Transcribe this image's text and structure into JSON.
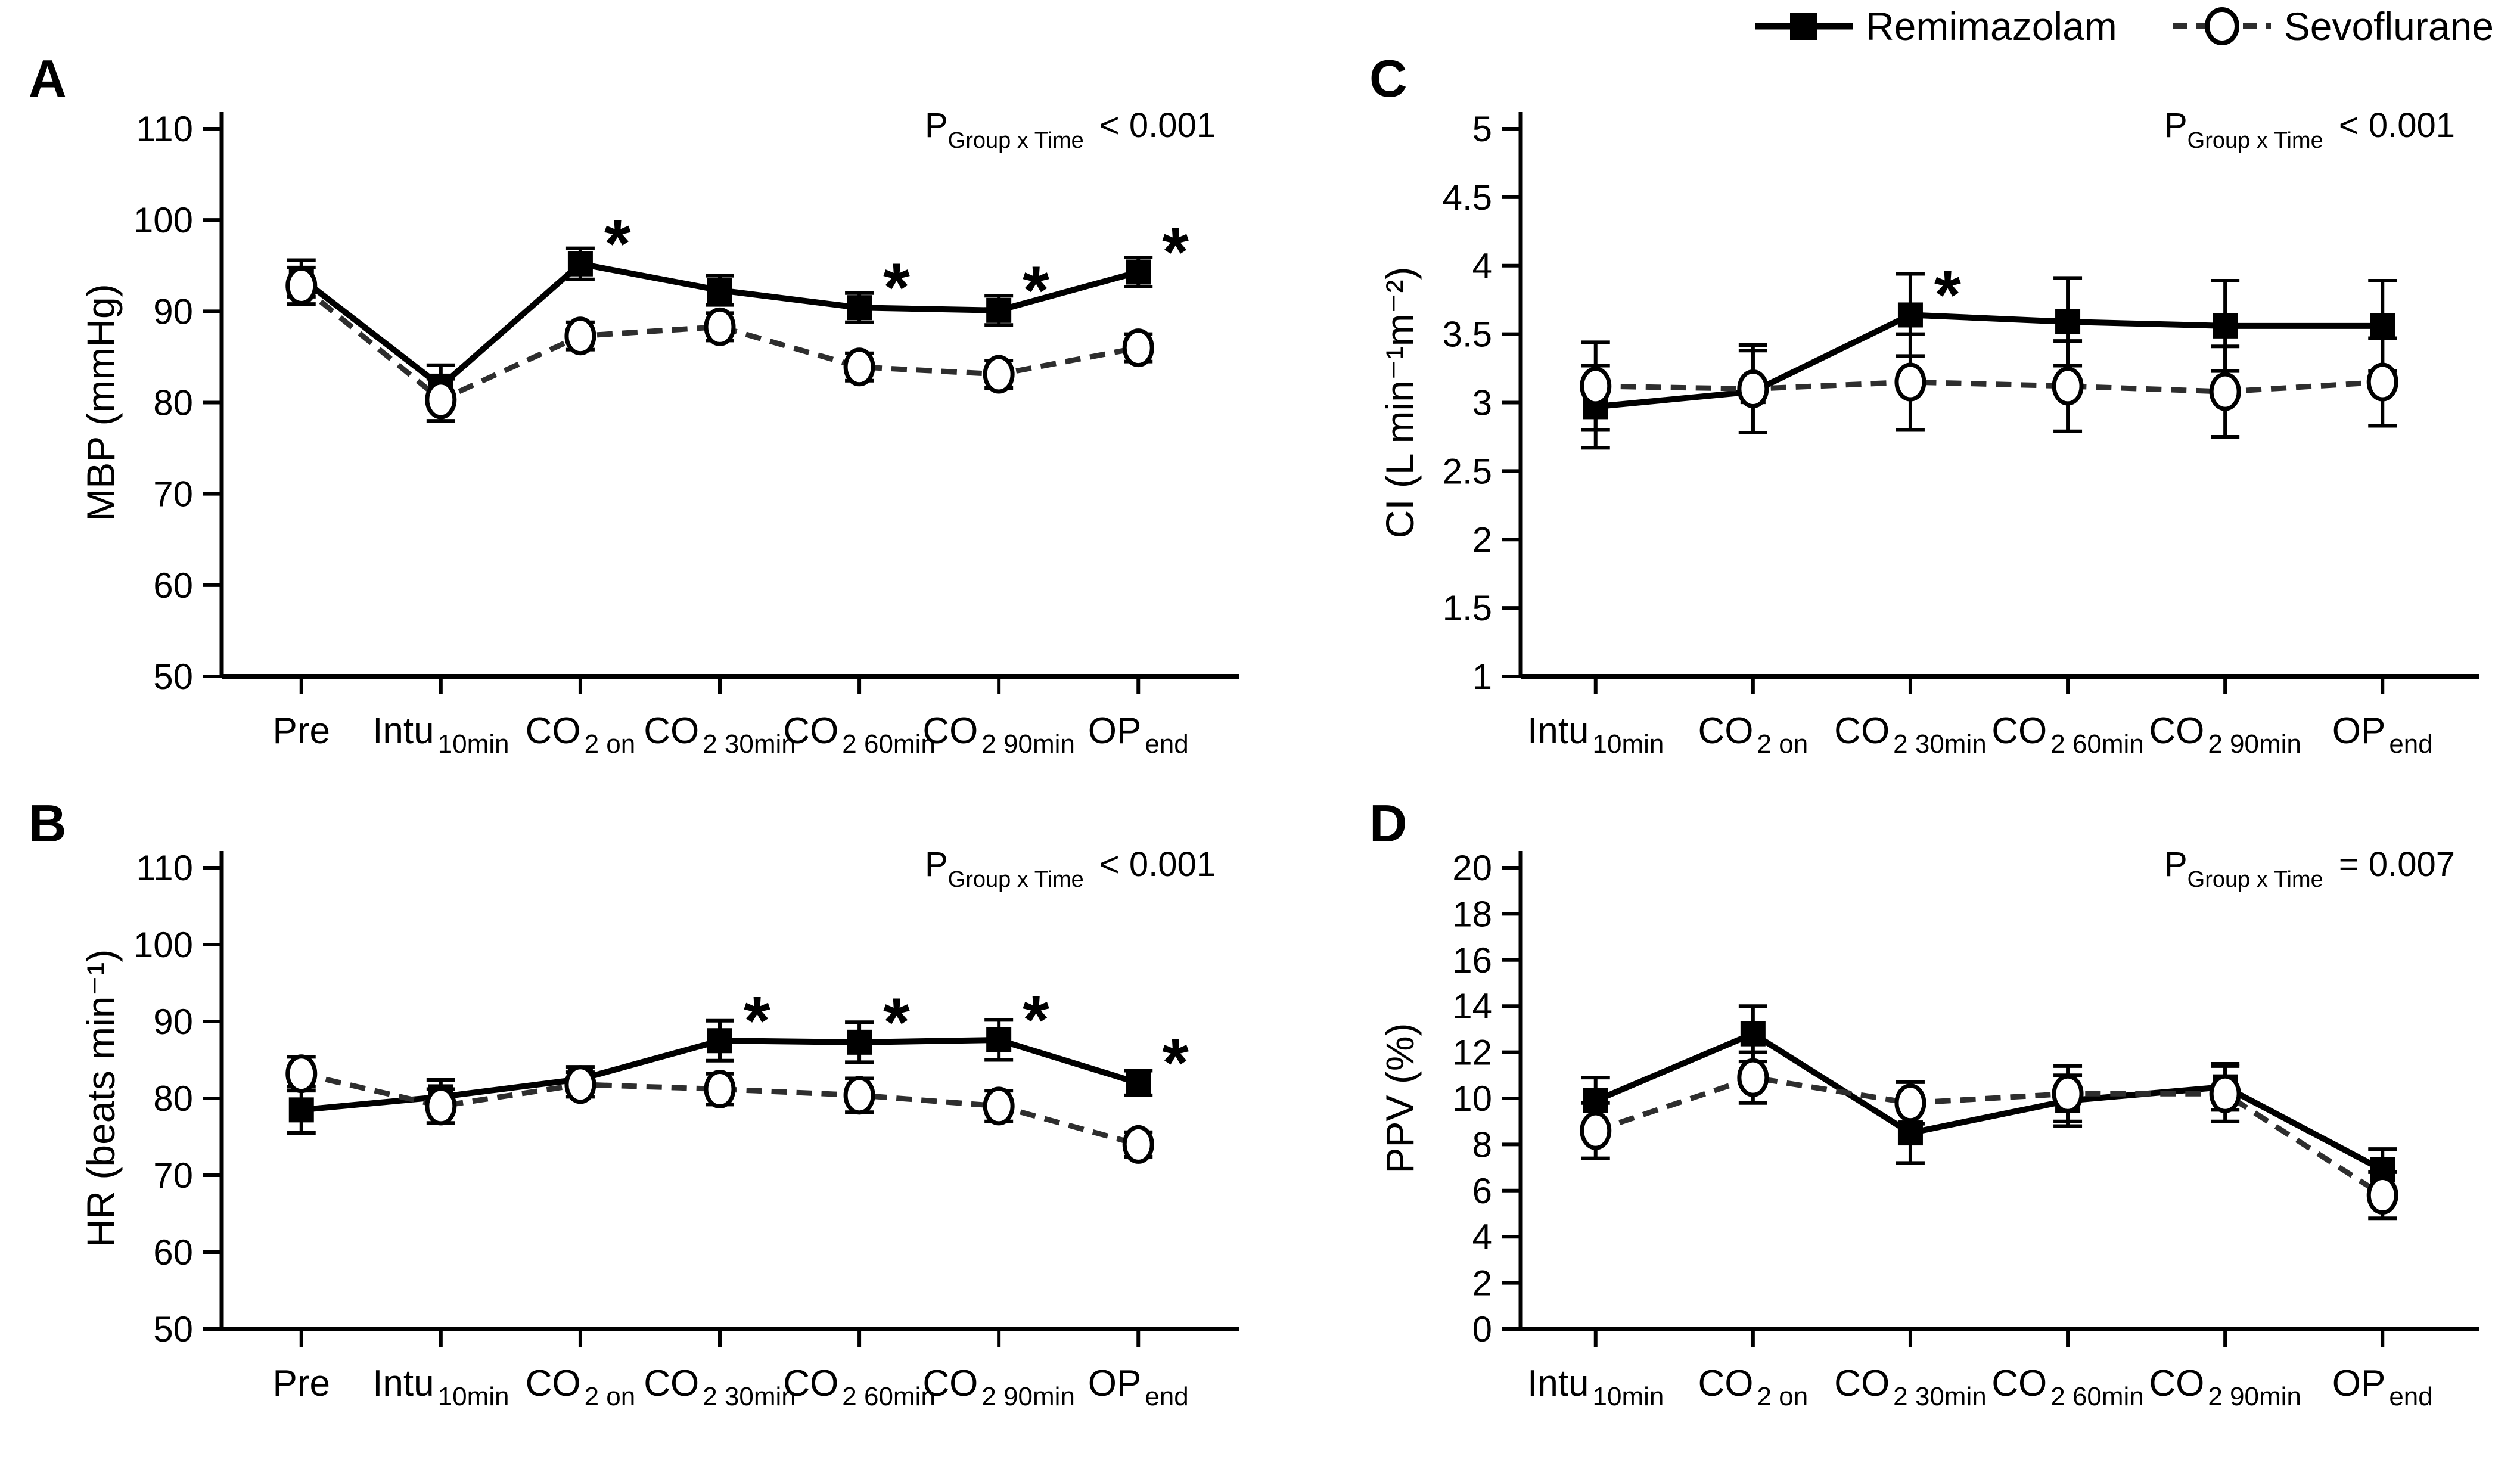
{
  "figure": {
    "background": "#ffffff",
    "foreground": "#000000",
    "dashed_series_color": "#2e2e2e",
    "legend": {
      "items": [
        {
          "label": "Remimazolam",
          "marker": "filled-square",
          "line": "solid"
        },
        {
          "label": "Sevoflurane",
          "marker": "open-circle",
          "line": "dashed"
        }
      ]
    }
  },
  "chart_data": [
    {
      "type": "line",
      "panel": "A",
      "ylabel": "MBP (mmHg)",
      "ylim": [
        50,
        110
      ],
      "ytick_step": 10,
      "grid": "off",
      "legend_position": "figure-top-right",
      "p_annotation": {
        "symbol": "P",
        "subscript": "Group x Time",
        "relation": "< 0.001"
      },
      "categories": [
        {
          "main": "Pre",
          "sub": ""
        },
        {
          "main": "Intu",
          "sub": "10min"
        },
        {
          "main": "CO",
          "sub": "2 on"
        },
        {
          "main": "CO",
          "sub": "2 30min"
        },
        {
          "main": "CO",
          "sub": "2 60min"
        },
        {
          "main": "CO",
          "sub": "2 90min"
        },
        {
          "main": "OP",
          "sub": "end"
        }
      ],
      "series": [
        {
          "name": "Remimazolam",
          "marker": "filled-square",
          "line": "solid",
          "values": [
            93.6,
            81.8,
            95.2,
            92.3,
            90.4,
            90.1,
            94.3
          ],
          "errors": [
            2.0,
            2.3,
            1.7,
            1.6,
            1.6,
            1.6,
            1.6
          ],
          "asterisks": [
            false,
            false,
            true,
            false,
            true,
            true,
            true
          ]
        },
        {
          "name": "Sevoflurane",
          "marker": "open-circle",
          "line": "dashed",
          "values": [
            92.8,
            80.3,
            87.3,
            88.3,
            83.9,
            83.1,
            86.0
          ],
          "errors": [
            2.0,
            2.3,
            1.5,
            1.5,
            1.5,
            1.5,
            1.5
          ],
          "asterisks": [
            false,
            false,
            false,
            false,
            false,
            false,
            false
          ]
        }
      ]
    },
    {
      "type": "line",
      "panel": "B",
      "ylabel": "HR (beats min⁻¹)",
      "ylim": [
        50,
        110
      ],
      "ytick_step": 10,
      "grid": "off",
      "p_annotation": {
        "symbol": "P",
        "subscript": "Group x Time",
        "relation": "< 0.001"
      },
      "categories": [
        {
          "main": "Pre",
          "sub": ""
        },
        {
          "main": "Intu",
          "sub": "10min"
        },
        {
          "main": "CO",
          "sub": "2 on"
        },
        {
          "main": "CO",
          "sub": "2 30min"
        },
        {
          "main": "CO",
          "sub": "2 60min"
        },
        {
          "main": "CO",
          "sub": "2 90min"
        },
        {
          "main": "OP",
          "sub": "end"
        }
      ],
      "series": [
        {
          "name": "Remimazolam",
          "marker": "filled-square",
          "line": "solid",
          "values": [
            78.5,
            80.2,
            82.5,
            87.5,
            87.3,
            87.6,
            82.0
          ],
          "errors": [
            3.0,
            2.2,
            1.6,
            2.6,
            2.6,
            2.6,
            1.6
          ],
          "asterisks": [
            false,
            false,
            false,
            true,
            true,
            true,
            true
          ]
        },
        {
          "name": "Sevoflurane",
          "marker": "open-circle",
          "line": "dashed",
          "values": [
            83.2,
            79.0,
            81.8,
            81.2,
            80.4,
            79.0,
            74.0
          ],
          "errors": [
            2.2,
            2.2,
            1.6,
            2.0,
            2.2,
            2.0,
            1.6
          ],
          "asterisks": [
            false,
            false,
            false,
            false,
            false,
            false,
            false
          ]
        }
      ]
    },
    {
      "type": "line",
      "panel": "C",
      "ylabel": "CI (L min⁻¹m⁻²)",
      "ylim": [
        1,
        5
      ],
      "ytick_step": 0.5,
      "grid": "off",
      "p_annotation": {
        "symbol": "P",
        "subscript": "Group x Time",
        "relation": "< 0.001"
      },
      "categories": [
        {
          "main": "Intu",
          "sub": "10min"
        },
        {
          "main": "CO",
          "sub": "2 on"
        },
        {
          "main": "CO",
          "sub": "2 30min"
        },
        {
          "main": "CO",
          "sub": "2 60min"
        },
        {
          "main": "CO",
          "sub": "2 90min"
        },
        {
          "main": "OP",
          "sub": "end"
        }
      ],
      "series": [
        {
          "name": "Remimazolam",
          "marker": "filled-square",
          "line": "solid",
          "values": [
            2.97,
            3.08,
            3.64,
            3.59,
            3.56,
            3.56
          ],
          "errors": [
            0.3,
            0.3,
            0.3,
            0.32,
            0.33,
            0.33
          ],
          "asterisks": [
            false,
            false,
            true,
            false,
            false,
            false
          ]
        },
        {
          "name": "Sevoflurane",
          "marker": "open-circle",
          "line": "dashed",
          "values": [
            3.12,
            3.1,
            3.15,
            3.12,
            3.08,
            3.15
          ],
          "errors": [
            0.32,
            0.32,
            0.35,
            0.33,
            0.33,
            0.32
          ],
          "asterisks": [
            false,
            false,
            false,
            false,
            false,
            false
          ]
        }
      ]
    },
    {
      "type": "line",
      "panel": "D",
      "ylabel": "PPV (%)",
      "ylim": [
        0,
        20
      ],
      "ytick_step": 2,
      "grid": "off",
      "p_annotation": {
        "symbol": "P",
        "subscript": "Group x Time",
        "relation": "= 0.007"
      },
      "categories": [
        {
          "main": "Intu",
          "sub": "10min"
        },
        {
          "main": "CO",
          "sub": "2 on"
        },
        {
          "main": "CO",
          "sub": "2 30min"
        },
        {
          "main": "CO",
          "sub": "2 60min"
        },
        {
          "main": "CO",
          "sub": "2 90min"
        },
        {
          "main": "OP",
          "sub": "end"
        }
      ],
      "series": [
        {
          "name": "Remimazolam",
          "marker": "filled-square",
          "line": "solid",
          "values": [
            9.9,
            12.8,
            8.5,
            9.9,
            10.5,
            6.9
          ],
          "errors": [
            1.0,
            1.2,
            1.3,
            1.1,
            1.0,
            0.9
          ],
          "asterisks": [
            false,
            false,
            false,
            false,
            false,
            false
          ]
        },
        {
          "name": "Sevoflurane",
          "marker": "open-circle",
          "line": "dashed",
          "values": [
            8.6,
            10.9,
            9.8,
            10.2,
            10.2,
            5.8
          ],
          "errors": [
            1.2,
            1.1,
            0.9,
            1.2,
            1.2,
            1.0
          ],
          "asterisks": [
            false,
            false,
            false,
            false,
            false,
            false
          ]
        }
      ]
    }
  ]
}
